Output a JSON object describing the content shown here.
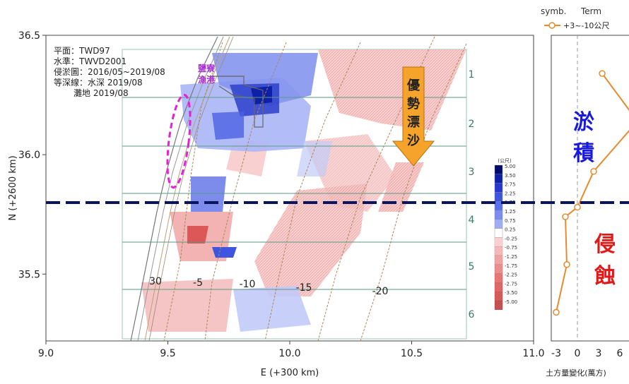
{
  "chart_data": [
    {
      "type": "heatmap",
      "xlabel": "E (+300 km)",
      "ylabel": "N (+2600 km)",
      "xlim": [
        9.0,
        11.0
      ],
      "ylim": [
        35.22,
        36.5
      ],
      "xticks": [
        "9.0",
        "9.5",
        "10.0",
        "10.5",
        "11.0"
      ],
      "yticks": [
        "35.5",
        "36.0",
        "36.5"
      ],
      "info_lines": [
        "平面：TWD97",
        "水準：TWVD2001",
        "侵淤圖：2016/05~2019/08",
        "等深線：水深 2019/08",
        "灘地 2019/08"
      ],
      "harbor_label": [
        "鹽寮",
        "漁港"
      ],
      "drift_label": [
        "優",
        "勢",
        "漂",
        "沙"
      ],
      "contour_labels": [
        "30",
        "-5",
        "-10",
        "-15",
        "-20"
      ],
      "zones": [
        "1",
        "2",
        "3",
        "4",
        "5",
        "6"
      ],
      "colorbar": {
        "unit": "(公尺)",
        "levels": [
          "5.00",
          "3.50",
          "2.75",
          "2.25",
          "1.75",
          "1.25",
          "0.75",
          "0.25",
          "-0.25",
          "-0.75",
          "-1.25",
          "-1.75",
          "-2.25",
          "-2.75",
          "-3.50",
          "-5.00"
        ],
        "colors": [
          "#000a6e",
          "#0e1fa8",
          "#2638d0",
          "#3f55e0",
          "#5b70ec",
          "#7b8cf2",
          "#a0acf6",
          "#ffffff",
          "#fde0e0",
          "#f6b8b8",
          "#ef9494",
          "#e86f6f",
          "#e04a4a",
          "#d42e2e",
          "#c41a1a",
          "#a80c0c"
        ]
      }
    },
    {
      "type": "line",
      "xlabel": "土方量變化(萬方)",
      "xticks": [
        "-3",
        "0",
        "3",
        "6"
      ],
      "legend_header": [
        "symb.",
        "Term"
      ],
      "series": [
        {
          "name": "+3~-10公尺",
          "color": "#e88a2e",
          "x": [
            3.5,
            8.5,
            2.3,
            0.0,
            -1.7,
            -1.5,
            -3.0
          ],
          "y": [
            36.34,
            36.14,
            35.93,
            35.78,
            35.74,
            35.54,
            35.34
          ]
        }
      ]
    }
  ],
  "annotations": {
    "accretion": [
      "淤",
      "積"
    ],
    "erosion": [
      "侵",
      "蝕"
    ]
  },
  "colors": {
    "accretion_text": "#1818e0",
    "erosion_text": "#e01818",
    "dashed_line": "#0a1560",
    "zone_line": "#5a9a86"
  }
}
